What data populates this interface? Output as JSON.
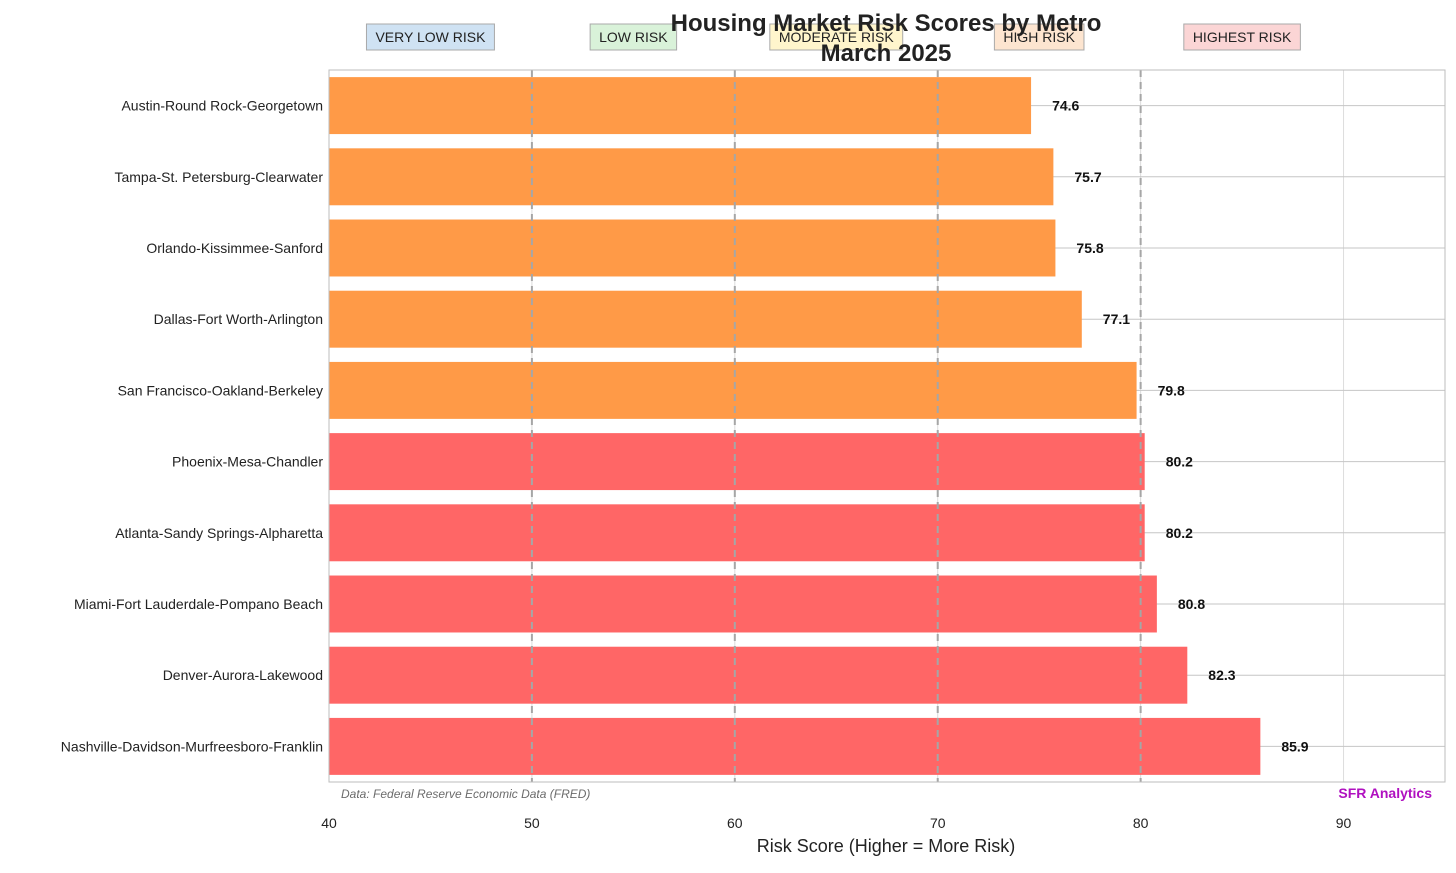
{
  "chart_data": {
    "type": "bar",
    "orientation": "horizontal",
    "title": "Housing Market Risk Scores by Metro",
    "subtitle": "March 2025",
    "xlabel": "Risk Score (Higher = More Risk)",
    "xlim": [
      40,
      95
    ],
    "xticks": [
      40,
      50,
      60,
      70,
      80,
      90
    ],
    "grid": true,
    "thresholds": [
      50,
      60,
      70,
      80
    ],
    "categories": [
      "Austin-Round Rock-Georgetown",
      "Tampa-St. Petersburg-Clearwater",
      "Orlando-Kissimmee-Sanford",
      "Dallas-Fort Worth-Arlington",
      "San Francisco-Oakland-Berkeley",
      "Phoenix-Mesa-Chandler",
      "Atlanta-Sandy Springs-Alpharetta",
      "Miami-Fort Lauderdale-Pompano Beach",
      "Denver-Aurora-Lakewood",
      "Nashville-Davidson-Murfreesboro-Franklin"
    ],
    "values": [
      74.6,
      75.7,
      75.8,
      77.1,
      79.8,
      80.2,
      80.2,
      80.8,
      82.3,
      85.9
    ],
    "value_labels": [
      "74.6",
      "75.7",
      "75.8",
      "77.1",
      "79.8",
      "80.2",
      "80.2",
      "80.8",
      "82.3",
      "85.9"
    ],
    "risk_bands": [
      {
        "label": "VERY LOW RISK",
        "fill": "#cfe2f3",
        "stroke": "#a9a9a9"
      },
      {
        "label": "LOW RISK",
        "fill": "#d9f2d9",
        "stroke": "#a9a9a9"
      },
      {
        "label": "MODERATE RISK",
        "fill": "#fff5cc",
        "stroke": "#a9a9a9"
      },
      {
        "label": "HIGH RISK",
        "fill": "#fde5d0",
        "stroke": "#a9a9a9"
      },
      {
        "label": "HIGHEST RISK",
        "fill": "#fbd5d5",
        "stroke": "#a9a9a9"
      }
    ],
    "colors": {
      "high_risk": "#ff9a47",
      "highest_risk": "#ff6666",
      "threshold_line": "#a6a6a6",
      "grid": "#dcdcdc",
      "brand": "#b010c0"
    },
    "source_note": "Data: Federal Reserve Economic Data (FRED)",
    "brand": "SFR Analytics"
  }
}
